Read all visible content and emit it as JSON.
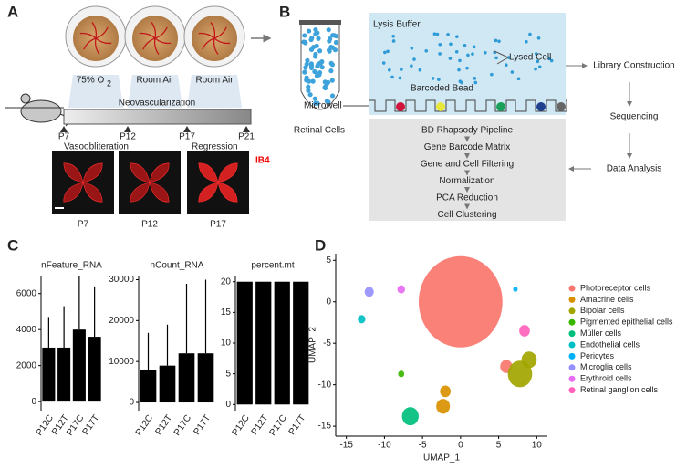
{
  "panel_a": {
    "label": "A",
    "conditions": [
      {
        "text": "75% O",
        "sub": "2"
      },
      {
        "text": "Room  Air"
      },
      {
        "text": "Room  Air"
      }
    ],
    "timeline": {
      "title": "Neovascularization",
      "ticks": [
        "P7",
        "P12",
        "P17",
        "P21"
      ],
      "phases": [
        "Vasoobliteration",
        "Regression"
      ]
    },
    "stain": "IB4",
    "images": [
      "P7",
      "P12",
      "P17"
    ]
  },
  "panel_b": {
    "label": "B",
    "tube": "Retinal Cells",
    "lysis": "Lysis Buffer",
    "lysed": "Lysed Cell",
    "bead": "Barcoded Bead",
    "microwell": "Microwell",
    "pipeline": [
      "BD Rhapsody Pipeline",
      "Gene Barcode Matrix",
      "Gene and Cell Filtering",
      "Normalization",
      "PCA Reduction",
      "Cell Clustering"
    ],
    "steps": [
      "Library Construction",
      "Sequencing",
      "Data Analysis"
    ]
  },
  "chart_data": [
    {
      "type": "strip",
      "panel": "C",
      "title": "nFeature_RNA",
      "categories": [
        "P12C",
        "P12T",
        "P17C",
        "P17T"
      ],
      "values": [
        4700,
        5300,
        7000,
        6400
      ],
      "bulk_values": [
        3000,
        3000,
        4000,
        3600
      ],
      "color": "#000000",
      "ylim": [
        -500,
        7000
      ],
      "yticks": [
        0,
        2000,
        4000,
        6000
      ]
    },
    {
      "type": "strip",
      "title": "nCount_RNA",
      "categories": [
        "P12C",
        "P12T",
        "P17C",
        "P17T"
      ],
      "values": [
        17000,
        19000,
        29000,
        30000
      ],
      "bulk_values": [
        8000,
        9000,
        12000,
        12000
      ],
      "color": "#000000",
      "ylim": [
        -2000,
        31000
      ],
      "yticks": [
        0,
        10000,
        20000,
        30000
      ]
    },
    {
      "type": "strip",
      "title": "percent.mt",
      "categories": [
        "P12C",
        "P12T",
        "P17C",
        "P17T"
      ],
      "values": [
        20,
        20,
        20,
        20
      ],
      "bulk_values": [
        20,
        20,
        20,
        20
      ],
      "color": "#000000",
      "ylim": [
        -1,
        21
      ],
      "yticks": [
        0,
        5,
        10,
        15,
        20
      ]
    },
    {
      "type": "scatter",
      "panel": "D",
      "x_label": "UMAP_1",
      "y_label": "UMAP_2",
      "xlim": [
        -16.4,
        11.4
      ],
      "xticks": [
        -15,
        -10,
        -5,
        0,
        5,
        10
      ],
      "ylim": [
        -16.2,
        5.8
      ],
      "yticks": [
        -15,
        -10,
        -5,
        0,
        5
      ],
      "series": [
        {
          "name": "Photoreceptor cells",
          "color": "#F8766D",
          "x": [
            0,
            6
          ],
          "y": [
            0,
            -7.8
          ],
          "size": [
            5.5,
            0.8
          ]
        },
        {
          "name": "Amacrine cells",
          "color": "#D89000",
          "x": [
            -2.3,
            -2.0
          ],
          "y": [
            -12.6,
            -10.8
          ],
          "size": [
            0.9,
            0.7
          ]
        },
        {
          "name": "Bipolar cells",
          "color": "#A3A500",
          "x": [
            7.8,
            9.0
          ],
          "y": [
            -8.7,
            -7.0
          ],
          "size": [
            1.6,
            1.0
          ]
        },
        {
          "name": "Pigmented epithelial cells",
          "color": "#39B600",
          "x": [
            -7.8
          ],
          "y": [
            -8.7
          ],
          "size": [
            0.4
          ]
        },
        {
          "name": "Müller cells",
          "color": "#00BF7D",
          "x": [
            -6.6
          ],
          "y": [
            -13.8
          ],
          "size": [
            1.1
          ]
        },
        {
          "name": "Endothelial cells",
          "color": "#00BFC4",
          "x": [
            -13
          ],
          "y": [
            -2.1
          ],
          "size": [
            0.5
          ]
        },
        {
          "name": "Pericytes",
          "color": "#00B0F6",
          "x": [
            7.2
          ],
          "y": [
            1.5
          ],
          "size": [
            0.3
          ]
        },
        {
          "name": "Microglia cells",
          "color": "#9590FF",
          "x": [
            -12
          ],
          "y": [
            1.2
          ],
          "size": [
            0.6
          ]
        },
        {
          "name": "Erythroid cells",
          "color": "#E76BF3",
          "x": [
            -7.8
          ],
          "y": [
            1.5
          ],
          "size": [
            0.5
          ]
        },
        {
          "name": "Retinal ganglion cells",
          "color": "#FF62BC",
          "x": [
            8.4
          ],
          "y": [
            -3.5
          ],
          "size": [
            0.7
          ]
        }
      ]
    }
  ]
}
